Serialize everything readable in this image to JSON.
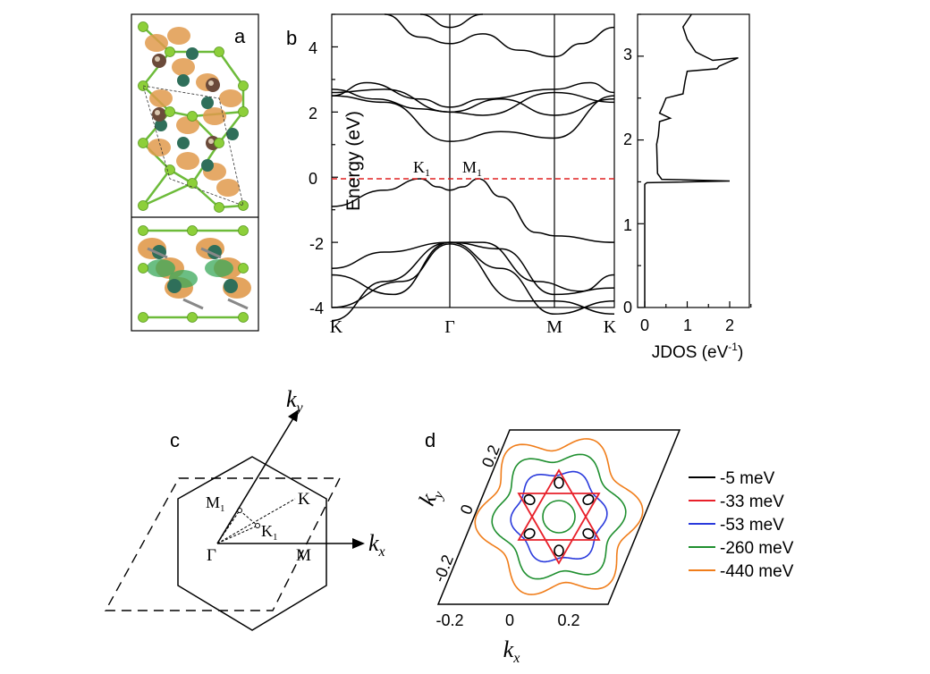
{
  "panels": {
    "a": {
      "label": "a",
      "colors": {
        "charge": "#e09a4c",
        "atom_light": "#8dcf3a",
        "atom_dark": "#2f6f5a",
        "atom_brown": "#6b4a3a",
        "bond": "#6dbb3a",
        "cell_bg": "#ffffff"
      }
    },
    "b": {
      "label": "b",
      "ylabel": "Energy (eV)",
      "yticks": [
        "4",
        "2",
        "0",
        "-2",
        "-4"
      ],
      "ylim": [
        -4,
        5
      ],
      "kpath": [
        "K",
        "Γ",
        "M",
        "K"
      ],
      "annotations": {
        "k1": "K",
        "m1": "M",
        "sub": "1"
      },
      "fermi_color": "#e02020",
      "jdos": {
        "xlabel": "JDOS (eV",
        "xlabel_sup": "-1",
        "xlabel_end": ")",
        "xticks": [
          "0",
          "1",
          "2"
        ],
        "yticks": [
          "0",
          "1",
          "2",
          "3"
        ],
        "xlim": [
          0,
          2.5
        ],
        "ylim": [
          0,
          3.5
        ]
      }
    },
    "c": {
      "label": "c",
      "points": {
        "gamma": "Γ",
        "m": "M",
        "k": "K",
        "m1": "M",
        "k1": "K",
        "sub": "1"
      },
      "axes": {
        "kx": "k",
        "kx_sub": "x",
        "ky": "k",
        "ky_sub": "y"
      }
    },
    "d": {
      "label": "d",
      "xlabel": "k",
      "xlabel_sub": "x",
      "ylabel": "k",
      "ylabel_sub": "y",
      "xticks": [
        "-0.2",
        "0",
        "0.2"
      ],
      "yticks": [
        "0.2",
        "0",
        "-0.2"
      ],
      "legend": [
        {
          "label": "-5  meV",
          "color": "#000000"
        },
        {
          "label": "-33 meV",
          "color": "#e8202a"
        },
        {
          "label": "-53 meV",
          "color": "#2a3adc"
        },
        {
          "label": "-260 meV",
          "color": "#1f8f2f"
        },
        {
          "label": "-440 meV",
          "color": "#f07d1a"
        }
      ]
    }
  },
  "chart_data": [
    {
      "type": "line",
      "ylabel": "Energy (eV)",
      "ylim": [
        -4,
        5
      ],
      "categories": [
        "K",
        "Γ",
        "M",
        "K"
      ],
      "series": [
        {
          "name": "",
          "values": [
            -4.0,
            -2.0,
            -4.2,
            -3.8
          ]
        },
        {
          "name": "",
          "values": [
            -2.8,
            -2.0,
            -3.6,
            -3.4
          ]
        },
        {
          "name": "",
          "values": [
            -0.9,
            -0.4,
            -1.8,
            -2.0
          ]
        },
        {
          "name": "",
          "values": [
            2.4,
            1.1,
            1.2,
            2.5
          ]
        },
        {
          "name": "",
          "values": [
            2.6,
            2.0,
            2.6,
            2.6
          ]
        },
        {
          "name": "",
          "values": [
            5.0,
            4.1,
            3.7,
            4.6
          ]
        }
      ]
    },
    {
      "type": "line",
      "xlabel": "JDOS (eV-1)",
      "xlim": [
        0,
        2.5
      ],
      "ylim": [
        0,
        3.5
      ],
      "x": [
        0,
        0,
        0.3,
        2.0,
        0.35,
        0.3,
        0.45,
        0.9,
        1.3,
        2.2,
        1.0,
        0.9
      ],
      "y": [
        0,
        1.48,
        1.5,
        1.52,
        1.6,
        2.0,
        2.3,
        2.5,
        2.8,
        2.97,
        3.2,
        3.5
      ]
    }
  ]
}
